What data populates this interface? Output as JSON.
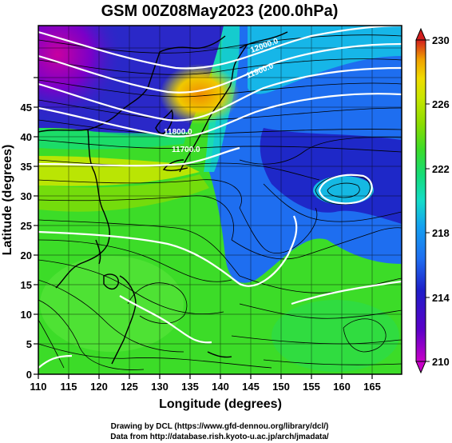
{
  "title": "GSM 00Z08May2023 (200.0hPa)",
  "map": {
    "x_axis": {
      "label": "Longitude (degrees)",
      "range": [
        110,
        170
      ],
      "ticks": [
        "110",
        "115",
        "120",
        "125",
        "130",
        "135",
        "140",
        "145",
        "150",
        "155",
        "160",
        "165"
      ],
      "tick_values": [
        110,
        115,
        120,
        125,
        130,
        135,
        140,
        145,
        150,
        155,
        160,
        165
      ]
    },
    "y_axis": {
      "label": "Latitude (degrees)",
      "range": [
        0,
        50
      ],
      "ticks": [
        "0",
        "5",
        "10",
        "15",
        "20",
        "25",
        "30",
        "35",
        "40",
        "45"
      ],
      "tick_values": [
        0,
        5,
        10,
        15,
        20,
        25,
        30,
        35,
        40,
        45
      ]
    },
    "grid": true,
    "shading": "temperature",
    "overlays": [
      "streamlines",
      "height contours",
      "coastlines"
    ]
  },
  "colorbar": {
    "labels": [
      "230",
      "226",
      "222",
      "218",
      "214",
      "210"
    ],
    "values": [
      230,
      226,
      222,
      218,
      214,
      210
    ],
    "min": 210,
    "max": 230,
    "extend": "both",
    "colors": [
      "#c800c8",
      "#5a00c8",
      "#1e1ec8",
      "#1e6ef0",
      "#14a0f0",
      "#14dcc8",
      "#14dc78",
      "#3cdc28",
      "#8cdc00",
      "#c8e600",
      "#f0dc00",
      "#f0a000",
      "#e65000",
      "#d21e1e"
    ]
  },
  "contour_labels": [
    "12000.0",
    "11900.0",
    "11800.0",
    "11700.0"
  ],
  "footer": {
    "line1": "Drawing by DCL (https://www.gfd-dennou.org/library/dcl/)",
    "line2": "Data from http://database.rish.kyoto-u.ac.jp/arch/jmadata/"
  }
}
